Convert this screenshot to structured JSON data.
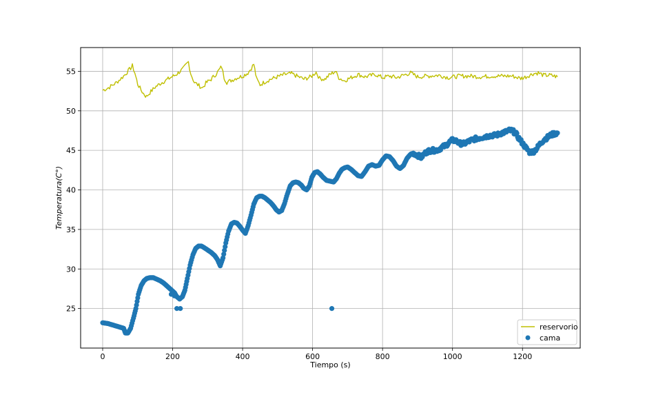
{
  "chart_data": {
    "type": "line+scatter",
    "xlabel": "Tiempo (s)",
    "ylabel": "Temperatura(C°)",
    "xlim": [
      -63,
      1365
    ],
    "ylim": [
      20.0,
      58.0
    ],
    "xticks": [
      0,
      200,
      400,
      600,
      800,
      1000,
      1200
    ],
    "yticks": [
      25,
      30,
      35,
      40,
      45,
      50,
      55
    ],
    "grid": true,
    "legend": "lower-right",
    "series": [
      {
        "name": "reservorio",
        "kind": "line",
        "color": "#bfbf00",
        "points": [
          [
            0,
            52.6
          ],
          [
            10,
            52.8
          ],
          [
            20,
            53.0
          ],
          [
            30,
            53.3
          ],
          [
            40,
            53.6
          ],
          [
            50,
            54.0
          ],
          [
            60,
            54.4
          ],
          [
            70,
            54.9
          ],
          [
            80,
            55.4
          ],
          [
            85,
            55.7
          ],
          [
            92,
            54.8
          ],
          [
            100,
            53.4
          ],
          [
            110,
            52.6
          ],
          [
            120,
            52.0
          ],
          [
            125,
            51.8
          ],
          [
            135,
            52.3
          ],
          [
            150,
            53.0
          ],
          [
            170,
            53.6
          ],
          [
            190,
            54.1
          ],
          [
            210,
            54.6
          ],
          [
            230,
            55.3
          ],
          [
            240,
            55.9
          ],
          [
            245,
            56.2
          ],
          [
            252,
            54.7
          ],
          [
            262,
            53.6
          ],
          [
            275,
            53.2
          ],
          [
            285,
            52.9
          ],
          [
            295,
            53.5
          ],
          [
            310,
            54.0
          ],
          [
            325,
            54.7
          ],
          [
            335,
            55.3
          ],
          [
            340,
            55.6
          ],
          [
            347,
            54.2
          ],
          [
            355,
            53.6
          ],
          [
            370,
            53.9
          ],
          [
            385,
            54.2
          ],
          [
            400,
            54.4
          ],
          [
            415,
            54.8
          ],
          [
            425,
            55.4
          ],
          [
            432,
            55.9
          ],
          [
            440,
            54.0
          ],
          [
            450,
            53.3
          ],
          [
            465,
            53.7
          ],
          [
            480,
            54.0
          ],
          [
            500,
            54.3
          ],
          [
            520,
            54.6
          ],
          [
            540,
            54.7
          ],
          [
            560,
            54.3
          ],
          [
            575,
            54.0
          ],
          [
            595,
            54.3
          ],
          [
            610,
            54.9
          ],
          [
            620,
            54.1
          ],
          [
            635,
            54.0
          ],
          [
            650,
            54.6
          ],
          [
            665,
            55.0
          ],
          [
            675,
            54.2
          ],
          [
            690,
            53.8
          ],
          [
            710,
            54.2
          ],
          [
            730,
            54.6
          ],
          [
            750,
            54.3
          ],
          [
            780,
            54.6
          ],
          [
            800,
            54.2
          ],
          [
            820,
            54.4
          ],
          [
            840,
            54.2
          ],
          [
            860,
            54.5
          ],
          [
            880,
            54.8
          ],
          [
            900,
            54.3
          ],
          [
            930,
            54.4
          ],
          [
            960,
            54.5
          ],
          [
            990,
            54.2
          ],
          [
            1020,
            54.4
          ],
          [
            1050,
            54.4
          ],
          [
            1080,
            54.3
          ],
          [
            1110,
            54.4
          ],
          [
            1140,
            54.4
          ],
          [
            1170,
            54.4
          ],
          [
            1195,
            54.1
          ],
          [
            1210,
            54.3
          ],
          [
            1230,
            54.7
          ],
          [
            1245,
            54.8
          ],
          [
            1260,
            54.5
          ],
          [
            1280,
            54.5
          ],
          [
            1300,
            54.3
          ]
        ]
      },
      {
        "name": "cama",
        "kind": "scatter",
        "color": "#1f77b4",
        "points": [
          [
            0,
            23.2
          ],
          [
            15,
            23.1
          ],
          [
            30,
            22.9
          ],
          [
            45,
            22.7
          ],
          [
            60,
            22.5
          ],
          [
            65,
            21.9
          ],
          [
            72,
            21.9
          ],
          [
            80,
            22.5
          ],
          [
            88,
            23.8
          ],
          [
            95,
            25.0
          ],
          [
            102,
            26.8
          ],
          [
            110,
            27.9
          ],
          [
            118,
            28.5
          ],
          [
            126,
            28.8
          ],
          [
            135,
            28.9
          ],
          [
            145,
            28.9
          ],
          [
            155,
            28.7
          ],
          [
            165,
            28.5
          ],
          [
            175,
            28.2
          ],
          [
            185,
            27.8
          ],
          [
            195,
            27.4
          ],
          [
            205,
            27.0
          ],
          [
            212,
            26.5
          ],
          [
            220,
            26.2
          ],
          [
            228,
            26.5
          ],
          [
            235,
            27.3
          ],
          [
            242,
            28.8
          ],
          [
            250,
            30.5
          ],
          [
            258,
            31.8
          ],
          [
            266,
            32.6
          ],
          [
            274,
            32.9
          ],
          [
            282,
            32.9
          ],
          [
            290,
            32.7
          ],
          [
            300,
            32.4
          ],
          [
            310,
            32.1
          ],
          [
            320,
            31.7
          ],
          [
            328,
            31.2
          ],
          [
            336,
            30.4
          ],
          [
            344,
            31.4
          ],
          [
            352,
            33.3
          ],
          [
            360,
            34.8
          ],
          [
            368,
            35.7
          ],
          [
            376,
            35.9
          ],
          [
            384,
            35.8
          ],
          [
            392,
            35.4
          ],
          [
            400,
            34.9
          ],
          [
            408,
            34.5
          ],
          [
            416,
            35.5
          ],
          [
            424,
            36.8
          ],
          [
            432,
            38.2
          ],
          [
            440,
            39.0
          ],
          [
            448,
            39.2
          ],
          [
            456,
            39.2
          ],
          [
            464,
            39.0
          ],
          [
            472,
            38.7
          ],
          [
            480,
            38.4
          ],
          [
            488,
            38.0
          ],
          [
            496,
            37.5
          ],
          [
            504,
            37.2
          ],
          [
            512,
            37.4
          ],
          [
            520,
            38.3
          ],
          [
            528,
            39.5
          ],
          [
            536,
            40.5
          ],
          [
            544,
            40.9
          ],
          [
            552,
            41.0
          ],
          [
            560,
            40.9
          ],
          [
            568,
            40.6
          ],
          [
            575,
            40.2
          ],
          [
            583,
            40.0
          ],
          [
            591,
            40.5
          ],
          [
            598,
            41.6
          ],
          [
            606,
            42.2
          ],
          [
            614,
            42.3
          ],
          [
            622,
            42.0
          ],
          [
            630,
            41.6
          ],
          [
            640,
            41.2
          ],
          [
            650,
            41.1
          ],
          [
            660,
            41.0
          ],
          [
            668,
            41.4
          ],
          [
            676,
            42.1
          ],
          [
            684,
            42.6
          ],
          [
            692,
            42.8
          ],
          [
            700,
            42.9
          ],
          [
            710,
            42.6
          ],
          [
            720,
            42.2
          ],
          [
            730,
            41.8
          ],
          [
            740,
            41.7
          ],
          [
            750,
            42.3
          ],
          [
            760,
            43.0
          ],
          [
            770,
            43.2
          ],
          [
            780,
            43.0
          ],
          [
            790,
            43.1
          ],
          [
            800,
            43.8
          ],
          [
            810,
            44.3
          ],
          [
            820,
            44.2
          ],
          [
            830,
            43.7
          ],
          [
            840,
            43.0
          ],
          [
            850,
            42.7
          ],
          [
            860,
            43.1
          ],
          [
            870,
            44.0
          ],
          [
            880,
            44.5
          ],
          [
            890,
            44.6
          ],
          [
            900,
            44.4
          ],
          [
            910,
            44.1
          ],
          [
            920,
            44.6
          ],
          [
            930,
            44.9
          ],
          [
            940,
            45.0
          ],
          [
            950,
            45.0
          ],
          [
            960,
            45.1
          ],
          [
            970,
            45.4
          ],
          [
            980,
            45.6
          ],
          [
            990,
            46.0
          ],
          [
            1000,
            46.3
          ],
          [
            1010,
            46.2
          ],
          [
            1020,
            45.9
          ],
          [
            1030,
            45.8
          ],
          [
            1040,
            46.0
          ],
          [
            1050,
            46.2
          ],
          [
            1060,
            46.4
          ],
          [
            1070,
            46.5
          ],
          [
            1080,
            46.6
          ],
          [
            1090,
            46.7
          ],
          [
            1100,
            46.8
          ],
          [
            1110,
            46.9
          ],
          [
            1120,
            46.9
          ],
          [
            1130,
            47.0
          ],
          [
            1140,
            47.2
          ],
          [
            1150,
            47.3
          ],
          [
            1160,
            47.5
          ],
          [
            1170,
            47.5
          ],
          [
            1180,
            47.2
          ],
          [
            1190,
            46.5
          ],
          [
            1200,
            45.9
          ],
          [
            1210,
            45.3
          ],
          [
            1220,
            44.8
          ],
          [
            1230,
            44.8
          ],
          [
            1240,
            45.2
          ],
          [
            1250,
            45.8
          ],
          [
            1260,
            46.3
          ],
          [
            1270,
            46.6
          ],
          [
            1280,
            46.9
          ],
          [
            1290,
            47.1
          ],
          [
            1300,
            47.2
          ],
          [
            196,
            26.8
          ],
          [
            205,
            26.6
          ],
          [
            212,
            25.0
          ],
          [
            222,
            25.0
          ],
          [
            655,
            25.0
          ]
        ]
      }
    ]
  }
}
